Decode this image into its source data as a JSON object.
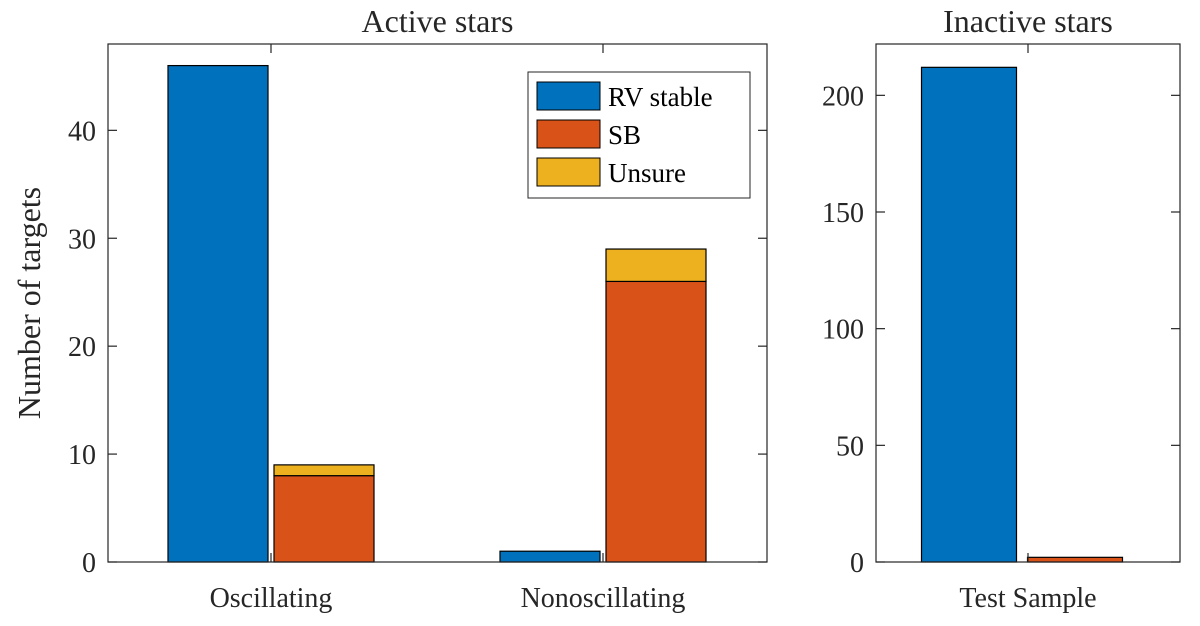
{
  "chart_data": [
    {
      "type": "bar",
      "stacked": true,
      "title": "Active stars",
      "ylabel": "Number of targets",
      "xlabel": "",
      "ylim": [
        0,
        48
      ],
      "yticks": [
        0,
        10,
        20,
        30,
        40
      ],
      "categories": [
        "Oscillating",
        "Nonoscillating"
      ],
      "groups": [
        {
          "category": "Oscillating",
          "bars": [
            {
              "series": "RV stable",
              "stack": [
                {
                  "series": "RV stable",
                  "value": 46
                }
              ]
            },
            {
              "series": "SB+Unsure",
              "stack": [
                {
                  "series": "SB",
                  "value": 8
                },
                {
                  "series": "Unsure",
                  "value": 1
                }
              ]
            }
          ]
        },
        {
          "category": "Nonoscillating",
          "bars": [
            {
              "series": "RV stable",
              "stack": [
                {
                  "series": "RV stable",
                  "value": 1
                }
              ]
            },
            {
              "series": "SB+Unsure",
              "stack": [
                {
                  "series": "SB",
                  "value": 26
                },
                {
                  "series": "Unsure",
                  "value": 3
                }
              ]
            }
          ]
        }
      ],
      "legend": {
        "position": "top-right",
        "entries": [
          {
            "name": "RV stable",
            "color": "#0072BD"
          },
          {
            "name": "SB",
            "color": "#D95319"
          },
          {
            "name": "Unsure",
            "color": "#EDB120"
          }
        ]
      },
      "grid": false
    },
    {
      "type": "bar",
      "stacked": true,
      "title": "Inactive stars",
      "ylabel": "",
      "xlabel": "",
      "ylim": [
        0,
        222
      ],
      "yticks": [
        0,
        50,
        100,
        150,
        200
      ],
      "categories": [
        "Test Sample"
      ],
      "groups": [
        {
          "category": "Test Sample",
          "bars": [
            {
              "series": "RV stable",
              "stack": [
                {
                  "series": "RV stable",
                  "value": 212
                }
              ]
            },
            {
              "series": "SB+Unsure",
              "stack": [
                {
                  "series": "SB",
                  "value": 2
                }
              ]
            }
          ]
        }
      ],
      "grid": false
    }
  ],
  "colors": {
    "RV stable": "#0072BD",
    "SB": "#D95319",
    "Unsure": "#EDB120"
  }
}
